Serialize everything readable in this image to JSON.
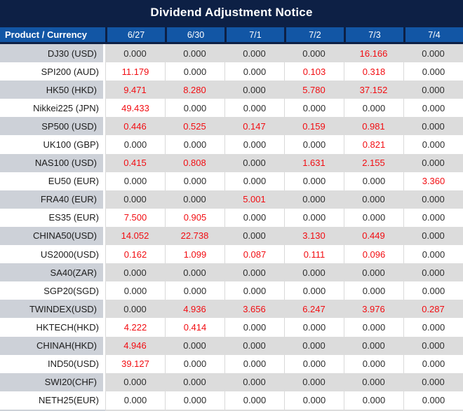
{
  "title": "Dividend Adjustment Notice",
  "table": {
    "label_header": "Product / Currency",
    "date_headers": [
      "6/27",
      "6/30",
      "7/1",
      "7/2",
      "7/3",
      "7/4"
    ],
    "rows": [
      {
        "label": "DJ30 (USD)",
        "values": [
          "0.000",
          "0.000",
          "0.000",
          "0.000",
          "16.166",
          "0.000"
        ]
      },
      {
        "label": "SPI200 (AUD)",
        "values": [
          "11.179",
          "0.000",
          "0.000",
          "0.103",
          "0.318",
          "0.000"
        ]
      },
      {
        "label": "HK50 (HKD)",
        "values": [
          "9.471",
          "8.280",
          "0.000",
          "5.780",
          "37.152",
          "0.000"
        ]
      },
      {
        "label": "Nikkei225 (JPN)",
        "values": [
          "49.433",
          "0.000",
          "0.000",
          "0.000",
          "0.000",
          "0.000"
        ]
      },
      {
        "label": "SP500 (USD)",
        "values": [
          "0.446",
          "0.525",
          "0.147",
          "0.159",
          "0.981",
          "0.000"
        ]
      },
      {
        "label": "UK100 (GBP)",
        "values": [
          "0.000",
          "0.000",
          "0.000",
          "0.000",
          "0.821",
          "0.000"
        ]
      },
      {
        "label": "NAS100 (USD)",
        "values": [
          "0.415",
          "0.808",
          "0.000",
          "1.631",
          "2.155",
          "0.000"
        ]
      },
      {
        "label": "EU50 (EUR)",
        "values": [
          "0.000",
          "0.000",
          "0.000",
          "0.000",
          "0.000",
          "3.360"
        ]
      },
      {
        "label": "FRA40 (EUR)",
        "values": [
          "0.000",
          "0.000",
          "5.001",
          "0.000",
          "0.000",
          "0.000"
        ]
      },
      {
        "label": "ES35 (EUR)",
        "values": [
          "7.500",
          "0.905",
          "0.000",
          "0.000",
          "0.000",
          "0.000"
        ]
      },
      {
        "label": "CHINA50(USD)",
        "values": [
          "14.052",
          "22.738",
          "0.000",
          "3.130",
          "0.449",
          "0.000"
        ]
      },
      {
        "label": "US2000(USD)",
        "values": [
          "0.162",
          "1.099",
          "0.087",
          "0.111",
          "0.096",
          "0.000"
        ]
      },
      {
        "label": "SA40(ZAR)",
        "values": [
          "0.000",
          "0.000",
          "0.000",
          "0.000",
          "0.000",
          "0.000"
        ]
      },
      {
        "label": "SGP20(SGD)",
        "values": [
          "0.000",
          "0.000",
          "0.000",
          "0.000",
          "0.000",
          "0.000"
        ]
      },
      {
        "label": "TWINDEX(USD)",
        "values": [
          "0.000",
          "4.936",
          "3.656",
          "6.247",
          "3.976",
          "0.287"
        ]
      },
      {
        "label": "HKTECH(HKD)",
        "values": [
          "4.222",
          "0.414",
          "0.000",
          "0.000",
          "0.000",
          "0.000"
        ]
      },
      {
        "label": "CHINAH(HKD)",
        "values": [
          "4.946",
          "0.000",
          "0.000",
          "0.000",
          "0.000",
          "0.000"
        ]
      },
      {
        "label": "IND50(USD)",
        "values": [
          "39.127",
          "0.000",
          "0.000",
          "0.000",
          "0.000",
          "0.000"
        ]
      },
      {
        "label": "SWI20(CHF)",
        "values": [
          "0.000",
          "0.000",
          "0.000",
          "0.000",
          "0.000",
          "0.000"
        ]
      },
      {
        "label": "NETH25(EUR)",
        "values": [
          "0.000",
          "0.000",
          "0.000",
          "0.000",
          "0.000",
          "0.000"
        ]
      }
    ]
  },
  "colors": {
    "title_bg": "#0D2045",
    "header_bg": "#1256A5",
    "header_border": "#0D2045",
    "header_text": "#FFFFFF",
    "stripe_label_bg": "#CDD1D8",
    "stripe_value_bg": "#DCDCDC",
    "gridline": "#D9D9D9",
    "zero_text": "#2E2E2E",
    "nonzero_text": "#F20D12"
  }
}
